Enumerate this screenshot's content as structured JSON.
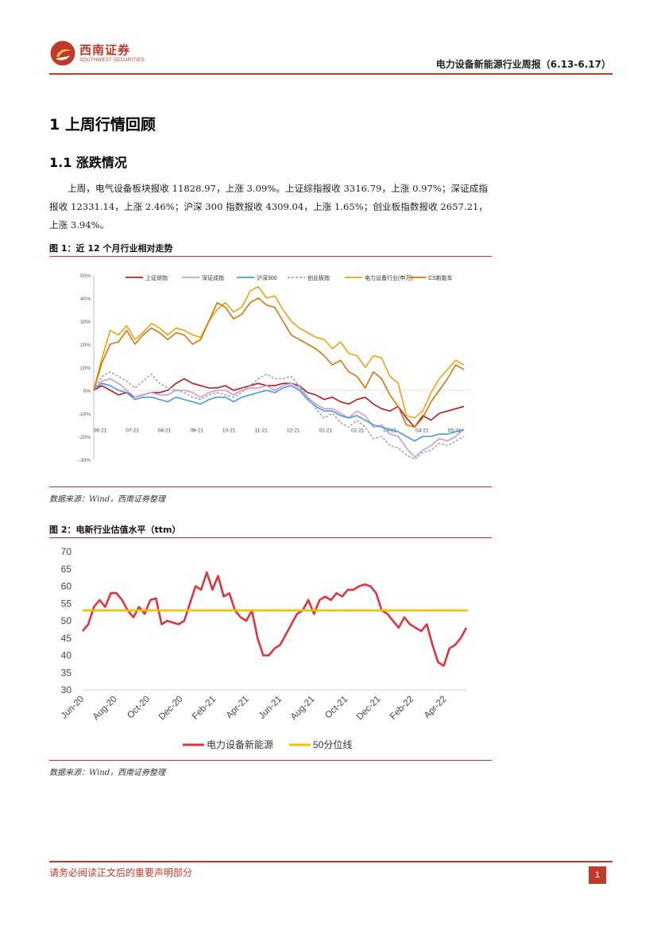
{
  "header": {
    "brand_cn": "西南证券",
    "brand_en": "SOUTHWEST SECURITIES",
    "report_title": "电力设备新能源行业周报（6.13-6.17）"
  },
  "section": {
    "h1": "1  上周行情回顾",
    "h2": "1.1 涨跌情况",
    "paragraph": "上周，电气设备板块报收 11828.97，上涨 3.09%。上证综指报收 3316.79，上涨 0.97%；深证成指报收 12331.14，上涨 2.46%；沪深 300 指数报收 4309.04，上涨 1.65%；创业板指数报收 2657.21，上涨 3.94%。"
  },
  "figure1": {
    "title": "图 1：近 12 个月行业相对走势",
    "source": "数据来源：Wind，西南证券整理"
  },
  "figure2": {
    "title": "图 2：电新行业估值水平（ttm）",
    "source": "数据来源：Wind，西南证券整理"
  },
  "footer": {
    "disclaimer": "请务必阅读正文后的重要声明部分",
    "page": "1"
  },
  "colors": {
    "brand": "#c0392b",
    "line_red": "#b01e23",
    "line_purple": "#c39be0",
    "line_blue": "#4a9bd6",
    "line_gray": "#a5a5a5",
    "line_orange": "#e8a317",
    "line_dark_orange": "#d4760a",
    "line_pe": "#d9363e",
    "line_median": "#f5c000"
  },
  "chart_data": [
    {
      "type": "line",
      "title": "",
      "ylim": [
        -30,
        50
      ],
      "y_ticks": [
        "50%",
        "40%",
        "30%",
        "20%",
        "10%",
        "0%",
        "-10%",
        "-20%",
        "-30%"
      ],
      "x_ticks": [
        "06-21",
        "07-21",
        "08-21",
        "09-21",
        "10-21",
        "11-21",
        "12-21",
        "01-21",
        "02-21",
        "03-21",
        "04-21",
        "05-21"
      ],
      "series": [
        {
          "name": "上证综指",
          "color": "#b01e23",
          "values": [
            0,
            2,
            0,
            -2,
            -1,
            -3,
            -2,
            -1,
            -1,
            0,
            3,
            5,
            3,
            2,
            1,
            1,
            2,
            0,
            1,
            2,
            3,
            2,
            2,
            3,
            3,
            2,
            -1,
            -2,
            -4,
            -3,
            -5,
            -6,
            -4,
            -3,
            -6,
            -8,
            -9,
            -7,
            -12,
            -16,
            -11,
            -13,
            -10,
            -9,
            -8,
            -7
          ]
        },
        {
          "name": "深证成指",
          "color": "#c39be0",
          "values": [
            0,
            4,
            5,
            3,
            0,
            -3,
            -2,
            -1,
            -2,
            -2,
            0,
            0,
            -1,
            -3,
            -1,
            0,
            0,
            -2,
            0,
            1,
            1,
            2,
            0,
            2,
            3,
            1,
            -3,
            -6,
            -8,
            -8,
            -10,
            -12,
            -9,
            -11,
            -16,
            -15,
            -19,
            -20,
            -25,
            -29,
            -26,
            -24,
            -21,
            -22,
            -20,
            -17
          ]
        },
        {
          "name": "沪深300",
          "color": "#4a9bd6",
          "values": [
            0,
            3,
            2,
            0,
            -1,
            -4,
            -3,
            -3,
            -4,
            -5,
            -3,
            -4,
            -5,
            -6,
            -4,
            -3,
            -3,
            -5,
            -3,
            -2,
            -1,
            0,
            -1,
            1,
            2,
            0,
            -4,
            -7,
            -9,
            -9,
            -11,
            -12,
            -11,
            -13,
            -15,
            -16,
            -17,
            -18,
            -20,
            -22,
            -20,
            -20,
            -19,
            -19,
            -18,
            -17
          ]
        },
        {
          "name": "创业板指",
          "color": "#a5a5a5",
          "values": [
            0,
            6,
            8,
            6,
            4,
            1,
            4,
            7,
            3,
            1,
            0,
            -1,
            -3,
            -4,
            -2,
            -1,
            -2,
            -3,
            -1,
            2,
            5,
            7,
            5,
            5,
            6,
            2,
            -3,
            -8,
            -12,
            -10,
            -14,
            -16,
            -13,
            -16,
            -21,
            -20,
            -24,
            -25,
            -28,
            -30,
            -27,
            -26,
            -23,
            -24,
            -22,
            -20
          ]
        },
        {
          "name": "电力设备行业(申万)",
          "color": "#e8a317",
          "values": [
            0,
            14,
            26,
            24,
            28,
            22,
            25,
            29,
            27,
            24,
            27,
            26,
            24,
            23,
            30,
            35,
            38,
            34,
            36,
            43,
            45,
            40,
            41,
            35,
            30,
            27,
            25,
            23,
            22,
            18,
            21,
            16,
            15,
            10,
            15,
            14,
            6,
            3,
            -11,
            -12,
            -9,
            -1,
            5,
            9,
            13,
            11
          ]
        },
        {
          "name": "CS新能车",
          "color": "#d4760a",
          "values": [
            0,
            12,
            20,
            21,
            26,
            20,
            24,
            27,
            25,
            22,
            25,
            24,
            20,
            22,
            30,
            38,
            36,
            31,
            33,
            38,
            40,
            37,
            36,
            30,
            24,
            22,
            20,
            18,
            15,
            11,
            13,
            8,
            6,
            1,
            8,
            5,
            -2,
            -7,
            -15,
            -16,
            -12,
            -5,
            0,
            5,
            11,
            9
          ]
        }
      ]
    },
    {
      "type": "line",
      "title": "",
      "ylim": [
        30,
        70
      ],
      "y_ticks": [
        30,
        35,
        40,
        45,
        50,
        55,
        60,
        65,
        70
      ],
      "x_ticks": [
        "Jun-20",
        "Aug-20",
        "Oct-20",
        "Dec-20",
        "Feb-21",
        "Apr-21",
        "Jun-21",
        "Aug-21",
        "Oct-21",
        "Dec-21",
        "Feb-22",
        "Apr-22"
      ],
      "legend_position": "bottom",
      "series": [
        {
          "name": "电力设备新能源",
          "color": "#d9363e",
          "values": [
            47,
            49,
            54,
            56,
            54,
            58,
            58,
            56,
            53,
            51,
            54,
            52,
            56,
            56.5,
            49,
            50,
            49.5,
            49,
            50,
            55,
            60,
            59,
            64,
            59,
            63,
            57,
            58,
            53,
            51,
            50,
            53,
            45,
            40,
            40,
            42,
            43,
            46,
            49,
            52,
            53,
            56,
            52,
            56,
            57,
            56,
            58,
            57,
            59,
            59,
            60,
            60.5,
            60,
            58,
            53,
            52,
            50,
            48,
            51,
            49,
            48,
            47,
            49,
            43,
            38,
            37,
            42,
            43,
            45,
            48
          ]
        },
        {
          "name": "50分位线",
          "color": "#f5c000",
          "values": [
            53,
            53
          ]
        }
      ]
    }
  ]
}
